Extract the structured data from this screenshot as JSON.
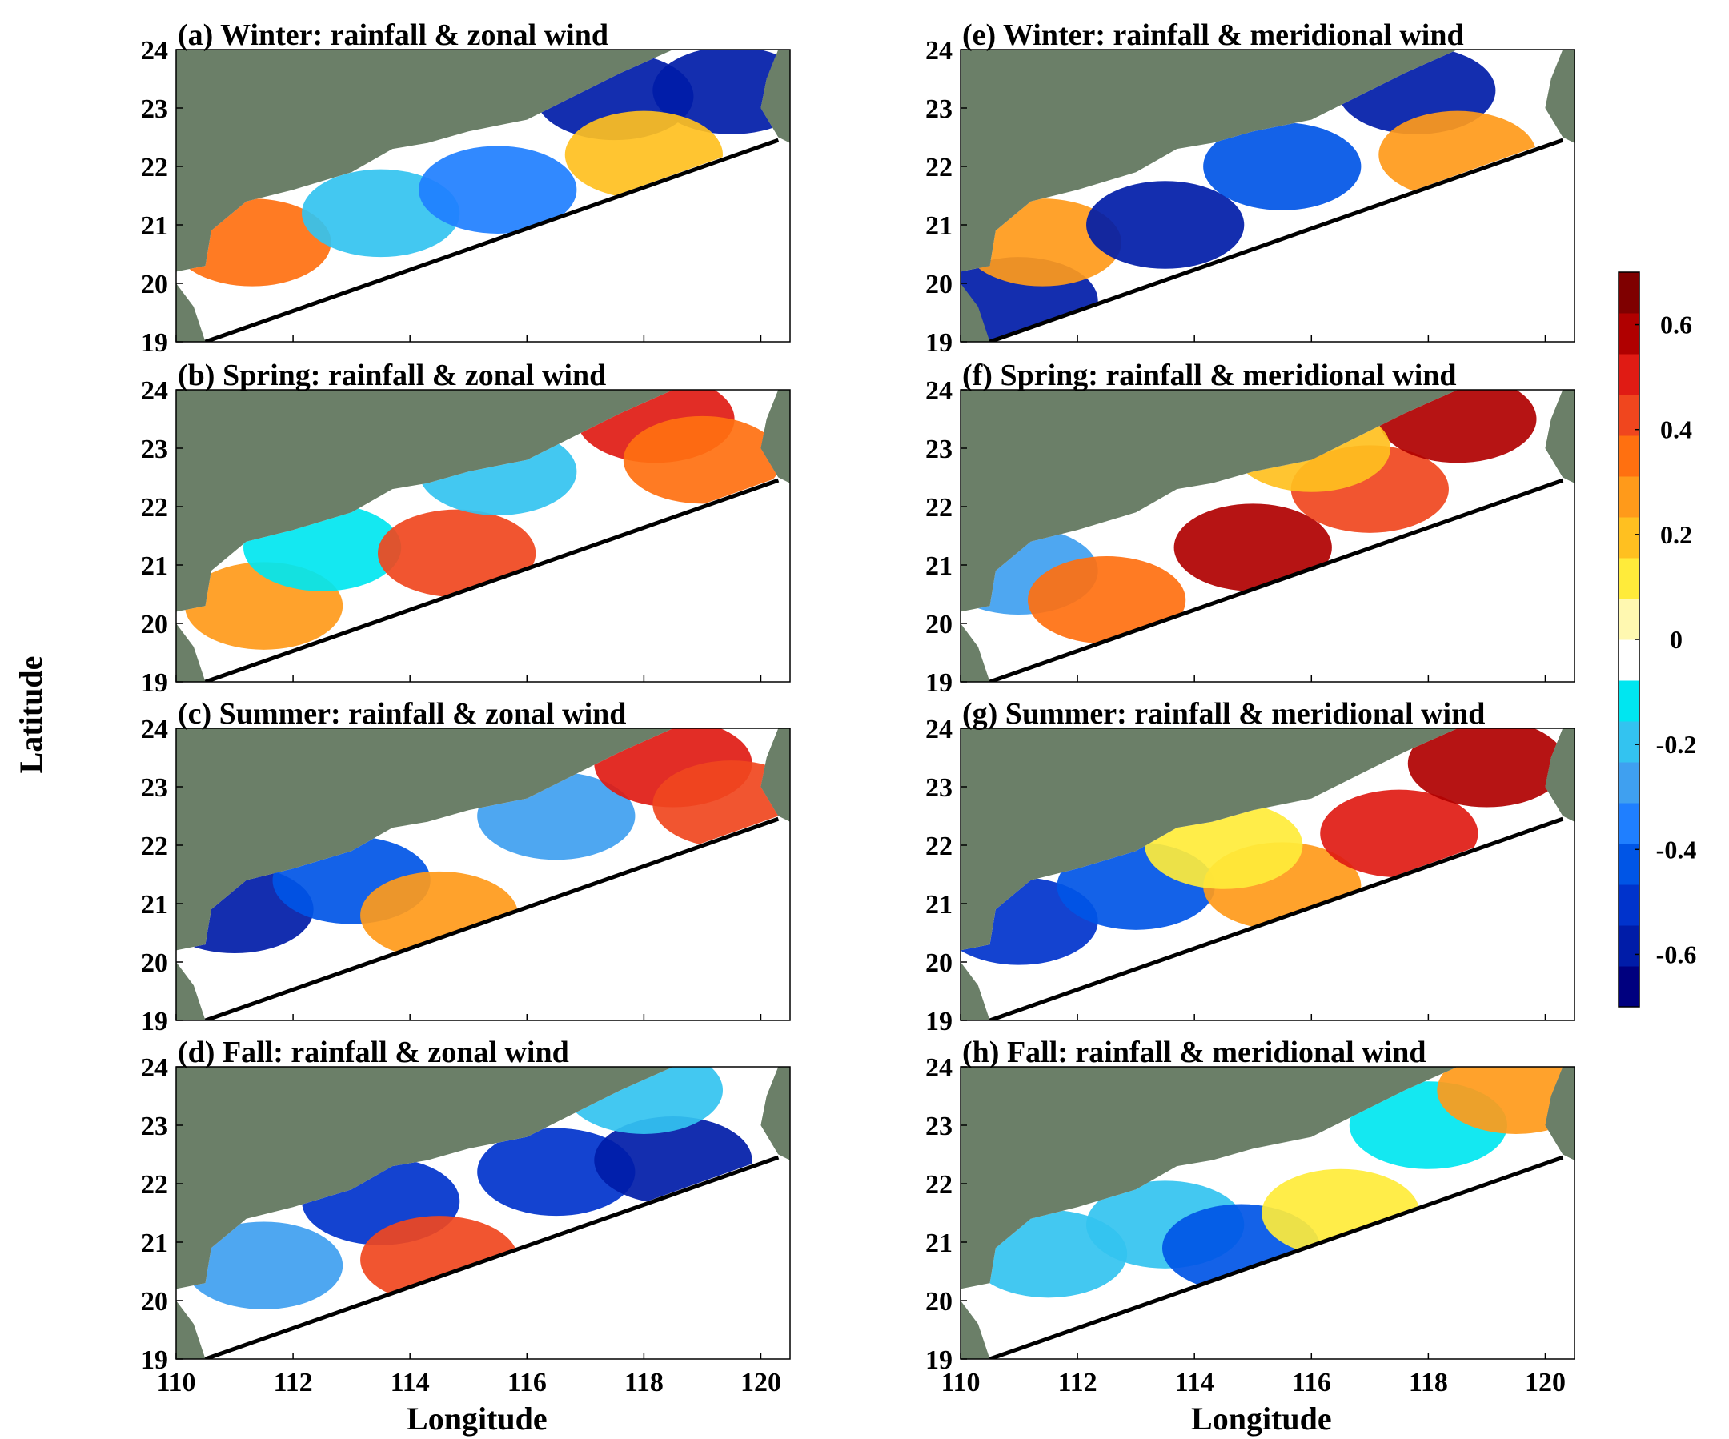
{
  "chart_data": [
    {
      "type": "heatmap",
      "panel": "a",
      "title": "(a) Winter: rainfall & zonal wind",
      "season": "Winter",
      "variables": [
        "rainfall",
        "zonal wind"
      ],
      "xlim": [
        110,
        120.5
      ],
      "ylim": [
        19,
        24
      ],
      "xticks": [
        "110",
        "112",
        "114",
        "116",
        "118",
        "120"
      ],
      "yticks": [
        "19",
        "20",
        "21",
        "22",
        "23",
        "24"
      ],
      "xlabel": "",
      "ylabel": "",
      "regions": [
        {
          "lon": 111.3,
          "lat": 20.7,
          "value": 0.35
        },
        {
          "lon": 113.5,
          "lat": 21.2,
          "value": -0.2
        },
        {
          "lon": 115.5,
          "lat": 21.6,
          "value": -0.35
        },
        {
          "lon": 117.5,
          "lat": 23.2,
          "value": -0.55
        },
        {
          "lon": 119.5,
          "lat": 23.3,
          "value": -0.6
        },
        {
          "lon": 118.0,
          "lat": 22.2,
          "value": 0.2
        }
      ]
    },
    {
      "type": "heatmap",
      "panel": "b",
      "title": "(b) Spring: rainfall & zonal wind",
      "season": "Spring",
      "variables": [
        "rainfall",
        "zonal wind"
      ],
      "xlim": [
        110,
        120.5
      ],
      "ylim": [
        19,
        24
      ],
      "xticks": [
        "110",
        "112",
        "114",
        "116",
        "118",
        "120"
      ],
      "yticks": [
        "19",
        "20",
        "21",
        "22",
        "23",
        "24"
      ],
      "xlabel": "",
      "ylabel": "",
      "regions": [
        {
          "lon": 111.5,
          "lat": 20.3,
          "value": 0.25
        },
        {
          "lon": 112.5,
          "lat": 21.3,
          "value": -0.15
        },
        {
          "lon": 114.8,
          "lat": 21.2,
          "value": 0.45
        },
        {
          "lon": 115.5,
          "lat": 22.6,
          "value": -0.2
        },
        {
          "lon": 118.2,
          "lat": 23.5,
          "value": 0.5
        },
        {
          "lon": 119.0,
          "lat": 22.8,
          "value": 0.35
        }
      ]
    },
    {
      "type": "heatmap",
      "panel": "c",
      "title": "(c) Summer: rainfall & zonal wind",
      "season": "Summer",
      "variables": [
        "rainfall",
        "zonal wind"
      ],
      "xlim": [
        110,
        120.5
      ],
      "ylim": [
        19,
        24
      ],
      "xticks": [
        "110",
        "112",
        "114",
        "116",
        "118",
        "120"
      ],
      "yticks": [
        "19",
        "20",
        "21",
        "22",
        "23",
        "24"
      ],
      "xlabel": "",
      "ylabel": "",
      "regions": [
        {
          "lon": 111.0,
          "lat": 20.9,
          "value": -0.55
        },
        {
          "lon": 113.0,
          "lat": 21.4,
          "value": -0.45
        },
        {
          "lon": 114.5,
          "lat": 20.8,
          "value": 0.25
        },
        {
          "lon": 116.5,
          "lat": 22.5,
          "value": -0.25
        },
        {
          "lon": 118.5,
          "lat": 23.4,
          "value": 0.5
        },
        {
          "lon": 119.5,
          "lat": 22.7,
          "value": 0.45
        }
      ]
    },
    {
      "type": "heatmap",
      "panel": "d",
      "title": "(d) Fall: rainfall & zonal wind",
      "season": "Fall",
      "variables": [
        "rainfall",
        "zonal wind"
      ],
      "xlim": [
        110,
        120.5
      ],
      "ylim": [
        19,
        24
      ],
      "xticks": [
        "110",
        "112",
        "114",
        "116",
        "118",
        "120"
      ],
      "yticks": [
        "19",
        "20",
        "21",
        "22",
        "23",
        "24"
      ],
      "xlabel": "Longitude",
      "ylabel": "",
      "regions": [
        {
          "lon": 111.5,
          "lat": 20.6,
          "value": -0.25
        },
        {
          "lon": 113.5,
          "lat": 21.7,
          "value": -0.5
        },
        {
          "lon": 114.5,
          "lat": 20.7,
          "value": 0.4
        },
        {
          "lon": 116.5,
          "lat": 22.2,
          "value": -0.5
        },
        {
          "lon": 118.5,
          "lat": 22.4,
          "value": -0.6
        },
        {
          "lon": 118.0,
          "lat": 23.6,
          "value": -0.2
        }
      ]
    },
    {
      "type": "heatmap",
      "panel": "e",
      "title": "(e) Winter: rainfall & meridional wind",
      "season": "Winter",
      "variables": [
        "rainfall",
        "meridional wind"
      ],
      "xlim": [
        110,
        120.5
      ],
      "ylim": [
        19,
        24
      ],
      "xticks": [
        "110",
        "112",
        "114",
        "116",
        "118",
        "120"
      ],
      "yticks": [
        "19",
        "20",
        "21",
        "22",
        "23",
        "24"
      ],
      "xlabel": "",
      "ylabel": "",
      "regions": [
        {
          "lon": 111.0,
          "lat": 19.7,
          "value": -0.55
        },
        {
          "lon": 111.4,
          "lat": 20.7,
          "value": 0.3
        },
        {
          "lon": 113.5,
          "lat": 21.0,
          "value": -0.55
        },
        {
          "lon": 115.5,
          "lat": 22.0,
          "value": -0.4
        },
        {
          "lon": 117.8,
          "lat": 23.3,
          "value": -0.6
        },
        {
          "lon": 118.5,
          "lat": 22.2,
          "value": 0.25
        }
      ]
    },
    {
      "type": "heatmap",
      "panel": "f",
      "title": "(f) Spring: rainfall & meridional wind",
      "season": "Spring",
      "variables": [
        "rainfall",
        "meridional wind"
      ],
      "xlim": [
        110,
        120.5
      ],
      "ylim": [
        19,
        24
      ],
      "xticks": [
        "110",
        "112",
        "114",
        "116",
        "118",
        "120"
      ],
      "yticks": [
        "19",
        "20",
        "21",
        "22",
        "23",
        "24"
      ],
      "xlabel": "",
      "ylabel": "",
      "regions": [
        {
          "lon": 111.0,
          "lat": 20.9,
          "value": -0.3
        },
        {
          "lon": 112.5,
          "lat": 20.4,
          "value": 0.35
        },
        {
          "lon": 115.0,
          "lat": 21.3,
          "value": 0.6
        },
        {
          "lon": 117.0,
          "lat": 22.3,
          "value": 0.45
        },
        {
          "lon": 118.5,
          "lat": 23.5,
          "value": 0.55
        },
        {
          "lon": 116.0,
          "lat": 23.0,
          "value": 0.2
        }
      ]
    },
    {
      "type": "heatmap",
      "panel": "g",
      "title": "(g) Summer: rainfall & meridional wind",
      "season": "Summer",
      "variables": [
        "rainfall",
        "meridional wind"
      ],
      "xlim": [
        110,
        120.5
      ],
      "ylim": [
        19,
        24
      ],
      "xticks": [
        "110",
        "112",
        "114",
        "116",
        "118",
        "120"
      ],
      "yticks": [
        "19",
        "20",
        "21",
        "22",
        "23",
        "24"
      ],
      "xlabel": "",
      "ylabel": "",
      "regions": [
        {
          "lon": 111.0,
          "lat": 20.7,
          "value": -0.5
        },
        {
          "lon": 113.0,
          "lat": 21.3,
          "value": -0.4
        },
        {
          "lon": 115.5,
          "lat": 21.3,
          "value": 0.25
        },
        {
          "lon": 117.5,
          "lat": 22.2,
          "value": 0.5
        },
        {
          "lon": 119.0,
          "lat": 23.4,
          "value": 0.55
        },
        {
          "lon": 114.5,
          "lat": 22.0,
          "value": 0.1
        }
      ]
    },
    {
      "type": "heatmap",
      "panel": "h",
      "title": "(h) Fall: rainfall & meridional wind",
      "season": "Fall",
      "variables": [
        "rainfall",
        "meridional wind"
      ],
      "xlim": [
        110,
        120.5
      ],
      "ylim": [
        19,
        24
      ],
      "xticks": [
        "110",
        "112",
        "114",
        "116",
        "118",
        "120"
      ],
      "yticks": [
        "19",
        "20",
        "21",
        "22",
        "23",
        "24"
      ],
      "xlabel": "Longitude",
      "ylabel": "",
      "regions": [
        {
          "lon": 111.5,
          "lat": 20.8,
          "value": -0.2
        },
        {
          "lon": 113.5,
          "lat": 21.3,
          "value": -0.2
        },
        {
          "lon": 114.8,
          "lat": 20.9,
          "value": -0.45
        },
        {
          "lon": 116.5,
          "lat": 21.5,
          "value": 0.1
        },
        {
          "lon": 118.0,
          "lat": 23.0,
          "value": -0.15
        },
        {
          "lon": 119.5,
          "lat": 23.6,
          "value": 0.25
        }
      ]
    }
  ],
  "figure": {
    "shared_ylabel": "Latitude",
    "colorbar": {
      "range": [
        -0.7,
        0.7
      ],
      "tick_labels": [
        "0.6",
        "0.4",
        "0.2",
        "0",
        "-0.2",
        "-0.4",
        "-0.6"
      ],
      "tick_values": [
        0.6,
        0.4,
        0.2,
        0,
        -0.2,
        -0.4,
        -0.6
      ],
      "colors": [
        "#00007f",
        "#001ca8",
        "#0033cc",
        "#0055e6",
        "#1f7fff",
        "#3fa0f0",
        "#33c3f0",
        "#00e6f0",
        "#ffffff",
        "#fff8b0",
        "#ffeb3a",
        "#ffc020",
        "#ff9a1a",
        "#ff7010",
        "#f0461e",
        "#e01b14",
        "#b00000",
        "#7f0000"
      ]
    },
    "colors": {
      "land": "#6b7f68",
      "coastline": "#000000",
      "background": "#ffffff"
    }
  }
}
